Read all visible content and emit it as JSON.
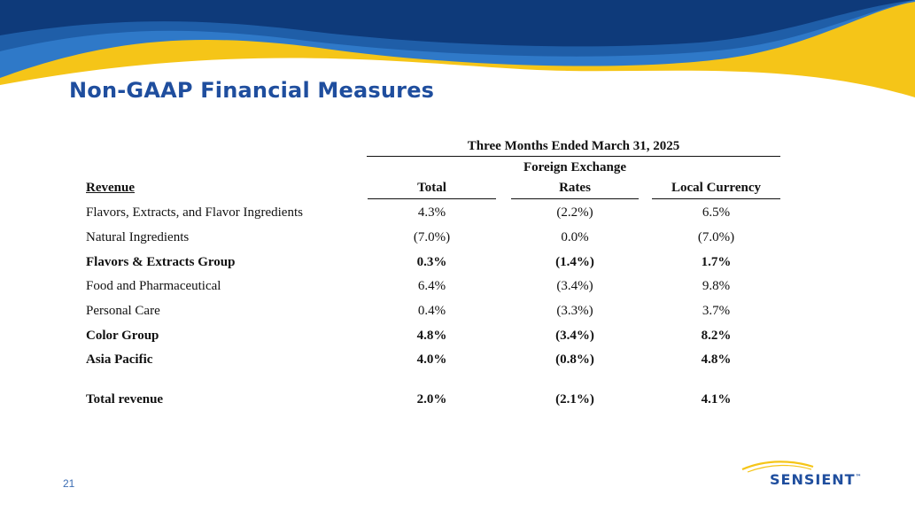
{
  "title": "Non-GAAP Financial Measures",
  "colors": {
    "title": "#1f4e9e",
    "wave_dark": "#0e3a7a",
    "wave_mid": "#1f5ea8",
    "wave_light": "#2f79c8",
    "wave_gold": "#f5c518"
  },
  "table": {
    "period_header": "Three Months Ended March 31, 2025",
    "row_header": "Revenue",
    "columns": {
      "total": "Total",
      "fx_line1": "Foreign Exchange",
      "fx_line2": "Rates",
      "local": "Local Currency"
    },
    "rows": [
      {
        "label": "Flavors, Extracts, and Flavor Ingredients",
        "total": "4.3%",
        "fx": "(2.2%)",
        "local": "6.5%"
      },
      {
        "label": "Natural Ingredients",
        "total": "(7.0%)",
        "fx": "0.0%",
        "local": "(7.0%)"
      },
      {
        "label": "Flavors & Extracts Group",
        "total": "0.3%",
        "fx": "(1.4%)",
        "local": "1.7%"
      },
      {
        "label": "Food and Pharmaceutical",
        "total": "6.4%",
        "fx": "(3.4%)",
        "local": "9.8%"
      },
      {
        "label": "Personal Care",
        "total": "0.4%",
        "fx": "(3.3%)",
        "local": "3.7%"
      },
      {
        "label": "Color Group",
        "total": "4.8%",
        "fx": "(3.4%)",
        "local": "8.2%"
      },
      {
        "label": "Asia Pacific",
        "total": "4.0%",
        "fx": "(0.8%)",
        "local": "4.8%"
      },
      {
        "label": "Total revenue",
        "total": "2.0%",
        "fx": "(2.1%)",
        "local": "4.1%"
      }
    ]
  },
  "page_number": "21",
  "logo": {
    "text": "SENSIENT",
    "mark": "™"
  }
}
